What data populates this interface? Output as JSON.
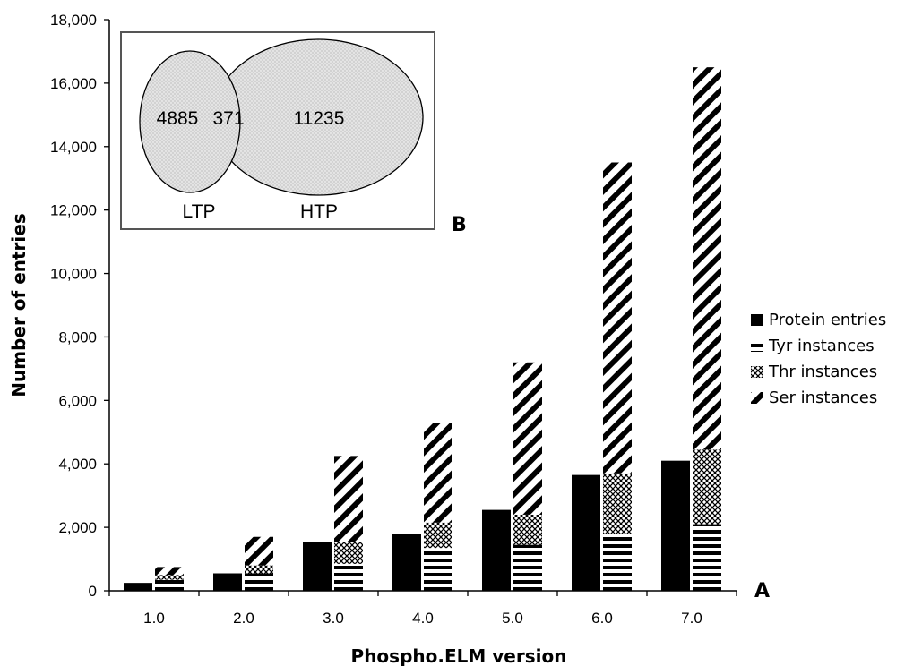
{
  "chart_data": {
    "type": "bar",
    "stacked_tower": true,
    "xlabel": "Phospho.ELM version",
    "ylabel": "Number of entries",
    "ylim": [
      0,
      18000
    ],
    "yticks": [
      0,
      2000,
      4000,
      6000,
      8000,
      10000,
      12000,
      14000,
      16000,
      18000
    ],
    "ytick_labels": [
      "0",
      "2,000",
      "4,000",
      "6,000",
      "8,000",
      "10,000",
      "12,000",
      "14,000",
      "16,000",
      "18,000"
    ],
    "categories": [
      "1.0",
      "2.0",
      "3.0",
      "4.0",
      "5.0",
      "6.0",
      "7.0"
    ],
    "legend_position": "right",
    "grid": false,
    "series": [
      {
        "name": "Protein entries",
        "pattern": "solid",
        "values": [
          250,
          550,
          1550,
          1800,
          2550,
          3650,
          4100
        ]
      },
      {
        "name": "Tyr instances",
        "pattern": "horizontal-lines",
        "values": [
          350,
          550,
          850,
          1350,
          1450,
          1800,
          2100
        ]
      },
      {
        "name": "Thr instances",
        "pattern": "crosshatch",
        "values": [
          150,
          250,
          700,
          800,
          950,
          1900,
          2350
        ]
      },
      {
        "name": "Ser instances",
        "pattern": "diagonal-lines",
        "values": [
          250,
          900,
          2700,
          3150,
          4800,
          9800,
          12050
        ]
      }
    ],
    "panel_label": "A"
  },
  "venn": {
    "panel_label": "B",
    "left_label": "LTP",
    "right_label": "HTP",
    "left_only": "4885",
    "overlap": "371",
    "right_only": "11235"
  }
}
